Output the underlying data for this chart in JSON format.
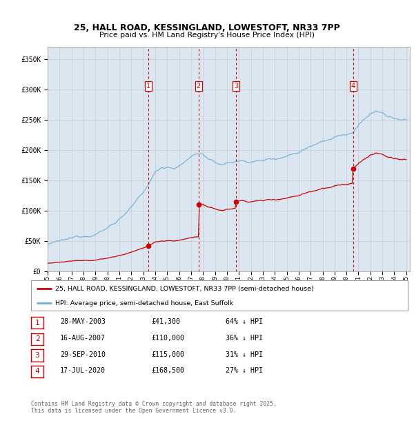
{
  "title_line1": "25, HALL ROAD, KESSINGLAND, LOWESTOFT, NR33 7PP",
  "title_line2": "Price paid vs. HM Land Registry's House Price Index (HPI)",
  "plot_bg_color": "#dce6f0",
  "ylim": [
    0,
    370000
  ],
  "yticks": [
    0,
    50000,
    100000,
    150000,
    200000,
    250000,
    300000,
    350000
  ],
  "ytick_labels": [
    "£0",
    "£50K",
    "£100K",
    "£150K",
    "£200K",
    "£250K",
    "£300K",
    "£350K"
  ],
  "year_start": 1995,
  "year_end": 2025,
  "hpi_color": "#6baed6",
  "price_color": "#cc0000",
  "vline_color": "#cc0000",
  "grid_color": "#bbbbbb",
  "sales": [
    {
      "num": 1,
      "date": "28-MAY-2003",
      "price": 41300,
      "year": 2003.41,
      "pct": "64%"
    },
    {
      "num": 2,
      "date": "16-AUG-2007",
      "price": 110000,
      "year": 2007.62,
      "pct": "36%"
    },
    {
      "num": 3,
      "date": "29-SEP-2010",
      "price": 115000,
      "year": 2010.75,
      "pct": "31%"
    },
    {
      "num": 4,
      "date": "17-JUL-2020",
      "price": 168500,
      "year": 2020.54,
      "pct": "27%"
    }
  ],
  "legend_line1": "25, HALL ROAD, KESSINGLAND, LOWESTOFT, NR33 7PP (semi-detached house)",
  "legend_line2": "HPI: Average price, semi-detached house, East Suffolk",
  "footer": "Contains HM Land Registry data © Crown copyright and database right 2025.\nThis data is licensed under the Open Government Licence v3.0."
}
